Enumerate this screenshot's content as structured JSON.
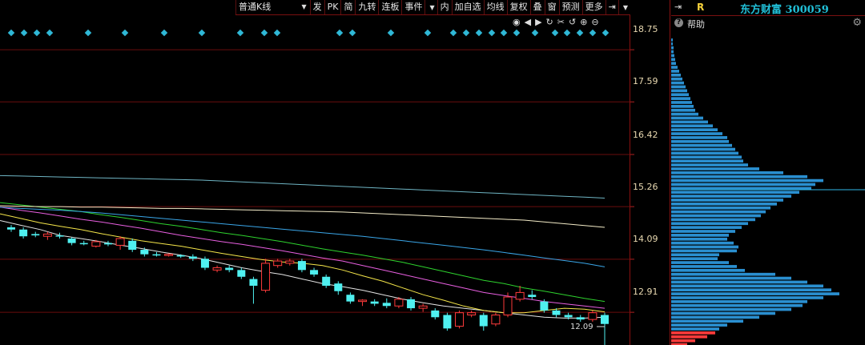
{
  "toolbar": {
    "items": [
      "普通K线",
      "发",
      "PK",
      "简",
      "九转",
      "连板",
      "事件",
      "内",
      "加自选",
      "均线",
      "复权",
      "叠",
      "窗",
      "预测",
      "更多"
    ]
  },
  "stock": {
    "title": "东方财富 300059",
    "r_label": "R"
  },
  "help": {
    "label": "帮助"
  },
  "price_axis": {
    "labels": [
      "18.75",
      "17.59",
      "16.42",
      "15.26",
      "14.09",
      "12.91"
    ],
    "current": "12.09"
  },
  "chart_data": {
    "type": "candlestick",
    "ylim": [
      12.2,
      19.5
    ],
    "y_ticks": [
      18.75,
      17.59,
      16.42,
      15.26,
      14.09,
      12.91
    ],
    "candles": [
      [
        14.8,
        14.85,
        14.75,
        14.7,
        "d"
      ],
      [
        14.75,
        14.8,
        14.6,
        14.55,
        "d"
      ],
      [
        14.65,
        14.7,
        14.62,
        14.58,
        "d"
      ],
      [
        14.6,
        14.7,
        14.65,
        14.52,
        "u"
      ],
      [
        14.62,
        14.68,
        14.6,
        14.55,
        "d"
      ],
      [
        14.55,
        14.58,
        14.45,
        14.4,
        "d"
      ],
      [
        14.45,
        14.5,
        14.43,
        14.4,
        "d"
      ],
      [
        14.38,
        14.52,
        14.48,
        14.35,
        "u"
      ],
      [
        14.45,
        14.5,
        14.42,
        14.38,
        "d"
      ],
      [
        14.4,
        14.6,
        14.55,
        14.3,
        "u"
      ],
      [
        14.5,
        14.55,
        14.3,
        14.25,
        "d"
      ],
      [
        14.3,
        14.35,
        14.2,
        14.15,
        "d"
      ],
      [
        14.2,
        14.25,
        14.18,
        14.15,
        "d"
      ],
      [
        14.2,
        14.22,
        14.18,
        14.15,
        "u"
      ],
      [
        14.18,
        14.2,
        14.15,
        14.12,
        "d"
      ],
      [
        14.15,
        14.2,
        14.1,
        14.05,
        "d"
      ],
      [
        14.1,
        14.15,
        13.9,
        13.85,
        "d"
      ],
      [
        13.85,
        13.95,
        13.9,
        13.8,
        "u"
      ],
      [
        13.9,
        13.95,
        13.85,
        13.8,
        "d"
      ],
      [
        13.85,
        13.9,
        13.7,
        13.65,
        "d"
      ],
      [
        13.65,
        13.7,
        13.5,
        13.1,
        "d"
      ],
      [
        13.4,
        14.1,
        14.0,
        13.35,
        "u"
      ],
      [
        13.95,
        14.1,
        14.05,
        13.9,
        "u"
      ],
      [
        14.05,
        14.1,
        14.0,
        13.95,
        "u"
      ],
      [
        14.05,
        14.1,
        13.85,
        13.8,
        "d"
      ],
      [
        13.85,
        13.9,
        13.75,
        13.7,
        "d"
      ],
      [
        13.7,
        13.75,
        13.5,
        13.45,
        "d"
      ],
      [
        13.55,
        13.6,
        13.38,
        13.3,
        "d"
      ],
      [
        13.3,
        13.35,
        13.15,
        13.1,
        "d"
      ],
      [
        13.15,
        13.2,
        13.18,
        13.05,
        "u"
      ],
      [
        13.15,
        13.2,
        13.1,
        13.05,
        "d"
      ],
      [
        13.12,
        13.22,
        13.05,
        13.0,
        "d"
      ],
      [
        13.05,
        13.25,
        13.2,
        13.0,
        "u"
      ],
      [
        13.2,
        13.25,
        13.0,
        12.95,
        "d"
      ],
      [
        13.0,
        13.1,
        13.05,
        12.92,
        "u"
      ],
      [
        12.95,
        13.0,
        12.8,
        12.75,
        "d"
      ],
      [
        12.85,
        12.9,
        12.55,
        12.5,
        "d"
      ],
      [
        12.6,
        12.95,
        12.9,
        12.55,
        "u"
      ],
      [
        12.9,
        12.95,
        12.85,
        12.8,
        "u"
      ],
      [
        12.85,
        12.9,
        12.6,
        12.5,
        "d"
      ],
      [
        12.65,
        12.9,
        12.85,
        12.6,
        "u"
      ],
      [
        12.85,
        13.35,
        13.25,
        12.8,
        "u"
      ],
      [
        13.2,
        13.5,
        13.35,
        13.15,
        "u"
      ],
      [
        13.3,
        13.4,
        13.25,
        13.2,
        "d"
      ],
      [
        13.15,
        13.2,
        12.95,
        12.9,
        "d"
      ],
      [
        12.95,
        13.0,
        12.85,
        12.8,
        "d"
      ],
      [
        12.85,
        12.9,
        12.8,
        12.75,
        "d"
      ],
      [
        12.8,
        12.85,
        12.75,
        12.7,
        "d"
      ],
      [
        12.75,
        12.95,
        12.9,
        12.7,
        "u"
      ],
      [
        12.85,
        12.9,
        12.65,
        12.09,
        "d"
      ]
    ],
    "ma_lines": [
      {
        "color": "#e4e4e4",
        "values": [
          14.95,
          14.85,
          14.75,
          14.62,
          14.55,
          14.48,
          14.4,
          14.33,
          14.25,
          14.18,
          14.1,
          14.0,
          13.9,
          13.82,
          13.75,
          13.65,
          13.55,
          13.48,
          13.4,
          13.3,
          13.2,
          13.12,
          13.05,
          13.0,
          12.95,
          12.9,
          12.85,
          12.8,
          12.78,
          12.78,
          12.8
        ]
      },
      {
        "color": "#f5e64a",
        "values": [
          15.1,
          15.0,
          14.9,
          14.82,
          14.75,
          14.66,
          14.58,
          14.5,
          14.44,
          14.38,
          14.3,
          14.22,
          14.15,
          14.08,
          14.03,
          14.0,
          13.95,
          13.85,
          13.72,
          13.6,
          13.45,
          13.3,
          13.18,
          13.05,
          12.95,
          12.9,
          12.9,
          12.95,
          13.0,
          12.98,
          12.92
        ]
      },
      {
        "color": "#e85fe0",
        "values": [
          15.25,
          15.18,
          15.12,
          15.05,
          14.98,
          14.92,
          14.85,
          14.78,
          14.7,
          14.62,
          14.55,
          14.48,
          14.42,
          14.35,
          14.28,
          14.2,
          14.12,
          14.05,
          13.95,
          13.85,
          13.75,
          13.65,
          13.55,
          13.45,
          13.35,
          13.28,
          13.22,
          13.15,
          13.1,
          13.05,
          13.0
        ]
      },
      {
        "color": "#2ed32e",
        "values": [
          15.35,
          15.3,
          15.25,
          15.2,
          15.15,
          15.08,
          15.02,
          14.95,
          14.88,
          14.82,
          14.75,
          14.68,
          14.62,
          14.55,
          14.48,
          14.4,
          14.32,
          14.25,
          14.18,
          14.1,
          14.02,
          13.92,
          13.82,
          13.72,
          13.62,
          13.55,
          13.45,
          13.38,
          13.3,
          13.22,
          13.15
        ]
      },
      {
        "color": "#f4ecc8",
        "values": [
          15.28,
          15.27,
          15.26,
          15.26,
          15.25,
          15.25,
          15.24,
          15.23,
          15.22,
          15.22,
          15.21,
          15.2,
          15.19,
          15.18,
          15.17,
          15.16,
          15.15,
          15.14,
          15.12,
          15.1,
          15.08,
          15.06,
          15.04,
          15.02,
          15.0,
          14.98,
          14.96,
          14.92,
          14.88,
          14.84,
          14.8
        ]
      },
      {
        "color": "#3aa6e8",
        "values": [
          15.25,
          15.22,
          15.2,
          15.18,
          15.15,
          15.12,
          15.08,
          15.04,
          15.0,
          14.96,
          14.92,
          14.88,
          14.84,
          14.8,
          14.76,
          14.72,
          14.68,
          14.64,
          14.6,
          14.55,
          14.5,
          14.45,
          14.4,
          14.35,
          14.3,
          14.24,
          14.18,
          14.12,
          14.06,
          14.0,
          13.92
        ]
      },
      {
        "color": "#6fb5c4",
        "values": [
          15.95,
          15.94,
          15.93,
          15.92,
          15.91,
          15.9,
          15.89,
          15.88,
          15.87,
          15.86,
          15.85,
          15.83,
          15.81,
          15.79,
          15.77,
          15.75,
          15.73,
          15.71,
          15.69,
          15.67,
          15.65,
          15.63,
          15.61,
          15.59,
          15.57,
          15.55,
          15.53,
          15.51,
          15.49,
          15.47,
          15.45
        ]
      }
    ],
    "volume_profile": {
      "color": "#2a8fd0",
      "price_low": 12.05,
      "price_high": 19.0,
      "widths": [
        2,
        2,
        3,
        3,
        4,
        5,
        6,
        8,
        10,
        12,
        14,
        16,
        18,
        20,
        22,
        24,
        26,
        28,
        30,
        34,
        40,
        46,
        52,
        58,
        64,
        70,
        72,
        76,
        80,
        84,
        88,
        90,
        96,
        110,
        140,
        170,
        190,
        180,
        175,
        160,
        150,
        140,
        132,
        124,
        118,
        112,
        105,
        96,
        88,
        80,
        72,
        70,
        78,
        84,
        82,
        60,
        58,
        72,
        82,
        92,
        130,
        150,
        170,
        190,
        200,
        210,
        190,
        170,
        164,
        150,
        130,
        110,
        90,
        70,
        60,
        55,
        45,
        30,
        20,
        10
      ]
    },
    "diamonds_x": [
      14,
      30,
      46,
      62,
      110,
      156,
      205,
      252,
      300,
      330,
      346,
      424,
      440,
      488,
      534,
      566,
      582,
      598,
      614,
      629,
      645,
      668,
      693,
      708,
      724,
      740,
      756
    ]
  }
}
